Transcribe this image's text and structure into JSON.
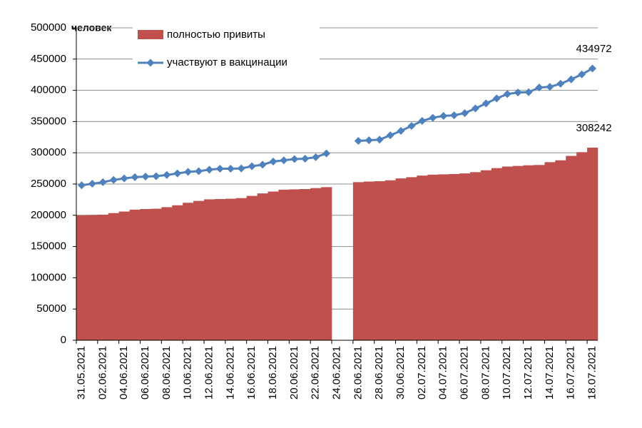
{
  "chart_data": {
    "type": "bar_line",
    "y_label": "человек",
    "categories": [
      "31.05.2021",
      null,
      "02.06.2021",
      null,
      "04.06.2021",
      null,
      "06.06.2021",
      null,
      "08.06.2021",
      null,
      "10.06.2021",
      null,
      "12.06.2021",
      null,
      "14.06.2021",
      null,
      "16.06.2021",
      null,
      "18.06.2021",
      null,
      "20.06.2021",
      null,
      "22.06.2021",
      null,
      "24.06.2021",
      null,
      "26.06.2021",
      null,
      "28.06.2021",
      null,
      "30.06.2021",
      null,
      "02.07.2021",
      null,
      "04.07.2021",
      null,
      "06.07.2021",
      null,
      "08.07.2021",
      null,
      "10.07.2021",
      null,
      "12.07.2021",
      null,
      "14.07.2021",
      null,
      "16.07.2021",
      null,
      "18.07.2021"
    ],
    "series": [
      {
        "name": "полностью привиты",
        "type": "bar",
        "color": "#c0504d",
        "values": [
          200000,
          200500,
          201000,
          203500,
          206000,
          209000,
          210000,
          210500,
          213000,
          216000,
          220000,
          223000,
          225500,
          226000,
          226500,
          227500,
          231000,
          235000,
          238000,
          241000,
          241500,
          242000,
          243500,
          245000,
          null,
          null,
          253000,
          254000,
          254500,
          256000,
          259000,
          261000,
          263500,
          265000,
          265500,
          266000,
          267000,
          269000,
          272000,
          275500,
          278000,
          279000,
          280000,
          280500,
          285000,
          288000,
          295000,
          301000,
          308242
        ]
      },
      {
        "name": "участвуют в вакцинации",
        "type": "line",
        "color": "#4f81bd",
        "values": [
          248000,
          250500,
          253000,
          256500,
          259000,
          261000,
          262000,
          262500,
          264500,
          267000,
          269500,
          270500,
          273000,
          274500,
          274500,
          275000,
          278500,
          281000,
          286000,
          288000,
          290000,
          290500,
          293000,
          299000,
          null,
          null,
          319000,
          320000,
          321000,
          328000,
          335000,
          343000,
          351000,
          356000,
          359000,
          360000,
          363500,
          371000,
          379000,
          387000,
          394000,
          396500,
          397000,
          404500,
          405500,
          410500,
          417500,
          425500,
          434972
        ]
      }
    ],
    "ylim": [
      0,
      500000
    ],
    "yticks": [
      0,
      50000,
      100000,
      150000,
      200000,
      250000,
      300000,
      350000,
      400000,
      450000,
      500000
    ],
    "grid": true,
    "legend": "top"
  }
}
